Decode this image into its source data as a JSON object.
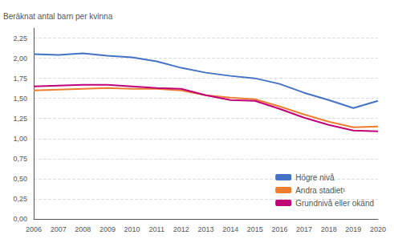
{
  "chart_data": {
    "type": "line",
    "ylabel": "Beräknat antal barn per kvinna",
    "x": [
      2006,
      2007,
      2008,
      2009,
      2010,
      2011,
      2012,
      2013,
      2014,
      2015,
      2016,
      2017,
      2018,
      2019,
      2020
    ],
    "series": [
      {
        "name": "Högre nivå",
        "color": "#4472C4",
        "values": [
          2.05,
          2.04,
          2.06,
          2.03,
          2.01,
          1.96,
          1.88,
          1.82,
          1.78,
          1.75,
          1.68,
          1.57,
          1.48,
          1.38,
          1.47
        ]
      },
      {
        "name": "Andra stadiet¹",
        "color": "#ED7D31",
        "values": [
          1.6,
          1.61,
          1.62,
          1.63,
          1.62,
          1.62,
          1.6,
          1.54,
          1.51,
          1.49,
          1.4,
          1.3,
          1.21,
          1.14,
          1.15
        ]
      },
      {
        "name": "Grundnivå eller okänd",
        "color": "#C00078",
        "values": [
          1.65,
          1.66,
          1.67,
          1.67,
          1.65,
          1.63,
          1.62,
          1.54,
          1.48,
          1.47,
          1.37,
          1.26,
          1.17,
          1.1,
          1.09
        ]
      }
    ],
    "xlim": [
      2006,
      2020
    ],
    "xticks": [
      2006,
      2007,
      2008,
      2009,
      2010,
      2011,
      2012,
      2013,
      2014,
      2015,
      2016,
      2017,
      2018,
      2019,
      2020
    ],
    "ylim": [
      0.0,
      2.375
    ],
    "yticks": [
      {
        "value": 0.0,
        "label": "0,00"
      },
      {
        "value": 0.25,
        "label": "0,25"
      },
      {
        "value": 0.5,
        "label": "0,50"
      },
      {
        "value": 0.75,
        "label": "0,75"
      },
      {
        "value": 1.0,
        "label": "1,00"
      },
      {
        "value": 1.25,
        "label": "1,25"
      },
      {
        "value": 1.5,
        "label": "1,50"
      },
      {
        "value": 1.75,
        "label": "1,75"
      },
      {
        "value": 2.0,
        "label": "2,00"
      },
      {
        "value": 2.25,
        "label": "2,25"
      }
    ],
    "grid": true,
    "legend": "lower right"
  }
}
